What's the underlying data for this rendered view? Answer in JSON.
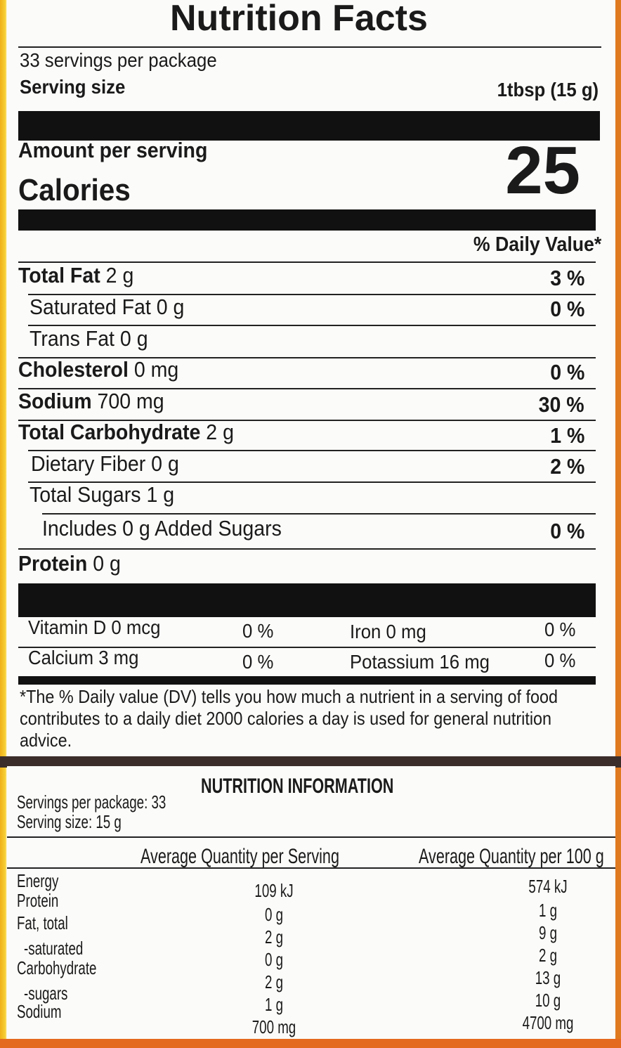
{
  "facts": {
    "title": "Nutrition Facts",
    "servings": "33 servings per package",
    "serving_size_label": "Serving size",
    "serving_size_value": "1tbsp (15 g)",
    "amount_per_serving": "Amount per serving",
    "calories_label": "Calories",
    "calories_value": "25",
    "dv_header": "% Daily Value*",
    "rows": [
      {
        "name": "Total Fat",
        "amount": "2 g",
        "dv": "3 %"
      },
      {
        "name": "Saturated Fat",
        "amount": "0 g",
        "dv": "0 %"
      },
      {
        "name": "Trans Fat",
        "amount": "0 g",
        "dv": ""
      },
      {
        "name": "Cholesterol",
        "amount": "0 mg",
        "dv": "0 %"
      },
      {
        "name": "Sodium",
        "amount": "700 mg",
        "dv": "30 %"
      },
      {
        "name": "Total Carbohydrate",
        "amount": "2 g",
        "dv": "1 %"
      },
      {
        "name": "Dietary Fiber",
        "amount": "0 g",
        "dv": "2 %"
      },
      {
        "name": "Total Sugars",
        "amount": "1 g",
        "dv": ""
      },
      {
        "name": "Includes 0 g Added Sugars",
        "amount": "",
        "dv": "0 %"
      },
      {
        "name": "Protein",
        "amount": "0 g",
        "dv": ""
      }
    ],
    "micros": [
      {
        "name": "Vitamin D 0 mcg",
        "dv": "0 %"
      },
      {
        "name": "Iron 0 mg",
        "dv": "0 %"
      },
      {
        "name": "Calcium 3 mg",
        "dv": "0 %"
      },
      {
        "name": "Potassium 16 mg",
        "dv": "0 %"
      }
    ],
    "footnote": "*The % Daily value (DV) tells you how much a nutrient in a serving of food contributes to a daily diet 2000 calories a day is used for general nutrition advice."
  },
  "info": {
    "title": "NUTRITION INFORMATION",
    "servings": "Servings per package: 33",
    "serving_size": "Serving size: 15 g",
    "col_serving": "Average Quantity per Serving",
    "col_100g": "Average Quantity per 100 g",
    "rows": [
      {
        "name": "Energy",
        "serving": "109 kJ",
        "per100": "574 kJ"
      },
      {
        "name": "Protein",
        "serving": "0 g",
        "per100": "1 g"
      },
      {
        "name": "Fat, total",
        "serving": "2 g",
        "per100": "9 g"
      },
      {
        "name": "-saturated",
        "serving": "0 g",
        "per100": "2 g"
      },
      {
        "name": "Carbohydrate",
        "serving": "2 g",
        "per100": "13 g"
      },
      {
        "name": "-sugars",
        "serving": "1 g",
        "per100": "10 g"
      },
      {
        "name": "Sodium",
        "serving": "700 mg",
        "per100": "4700 mg"
      }
    ]
  }
}
